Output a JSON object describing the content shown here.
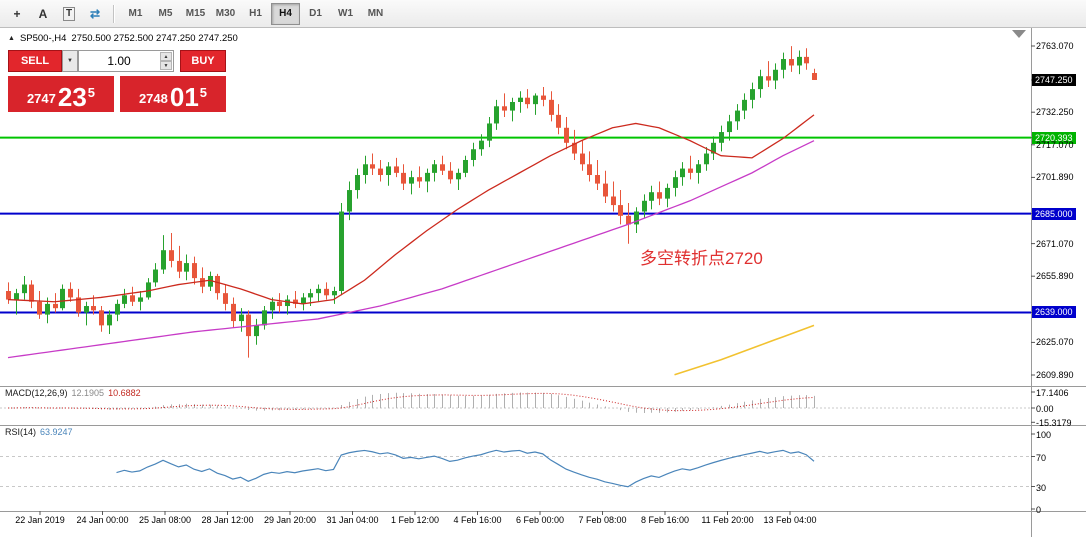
{
  "toolbar": {
    "icons": [
      {
        "name": "crosshair-icon",
        "glyph": "+"
      },
      {
        "name": "arrow-tool-icon",
        "glyph": "A"
      },
      {
        "name": "text-tool-icon",
        "glyph": "T"
      },
      {
        "name": "cycle-symbols-icon",
        "glyph": "⇄"
      }
    ],
    "timeframes": [
      {
        "label": "M1",
        "active": false
      },
      {
        "label": "M5",
        "active": false
      },
      {
        "label": "M15",
        "active": false
      },
      {
        "label": "M30",
        "active": false
      },
      {
        "label": "H1",
        "active": false
      },
      {
        "label": "H4",
        "active": true
      },
      {
        "label": "D1",
        "active": false
      },
      {
        "label": "W1",
        "active": false
      },
      {
        "label": "MN",
        "active": false
      }
    ]
  },
  "chart_header": {
    "collapse_glyph": "▲",
    "symbol": "SP500-,H4",
    "ohlc": "2750.500 2752.500 2747.250 2747.250"
  },
  "trade_panel": {
    "sell_label": "SELL",
    "buy_label": "BUY",
    "lot_value": "1.00",
    "dropdown_glyph": "▼",
    "spin_up_glyph": "▲",
    "spin_down_glyph": "▼",
    "bid": {
      "main": "2747",
      "pips": "23",
      "frac": "5"
    },
    "ask": {
      "main": "2748",
      "pips": "01",
      "frac": "5"
    }
  },
  "annotation": {
    "text": "多空转折点2720"
  },
  "price_axis": {
    "labels": [
      {
        "text": "2763.070",
        "price": 2763.07,
        "type": "normal"
      },
      {
        "text": "2747.250",
        "price": 2747.25,
        "type": "current"
      },
      {
        "text": "2732.250",
        "price": 2732.25,
        "type": "normal"
      },
      {
        "text": "2720.393",
        "price": 2720.393,
        "type": "line-green"
      },
      {
        "text": "2717.070",
        "price": 2717.07,
        "type": "normal"
      },
      {
        "text": "2701.890",
        "price": 2701.89,
        "type": "normal"
      },
      {
        "text": "2685.000",
        "price": 2685.0,
        "type": "line-blue"
      },
      {
        "text": "2671.070",
        "price": 2671.07,
        "type": "normal"
      },
      {
        "text": "2655.890",
        "price": 2655.89,
        "type": "normal"
      },
      {
        "text": "2639.000",
        "price": 2639.0,
        "type": "line-blue"
      },
      {
        "text": "2625.070",
        "price": 2625.07,
        "type": "normal"
      },
      {
        "text": "2609.890",
        "price": 2609.89,
        "type": "normal"
      }
    ]
  },
  "time_axis": {
    "labels": [
      "22 Jan 2019",
      "24 Jan 00:00",
      "25 Jan 08:00",
      "28 Jan 12:00",
      "29 Jan 20:00",
      "31 Jan 04:00",
      "1 Feb 12:00",
      "4 Feb 16:00",
      "6 Feb 00:00",
      "7 Feb 08:00",
      "8 Feb 16:00",
      "11 Feb 20:00",
      "13 Feb 04:00"
    ]
  },
  "indicators": {
    "macd": {
      "name": "MACD(12,26,9)",
      "value_main": "12.1905",
      "value_signal": "10.6882",
      "axis": [
        {
          "text": "17.1406",
          "value": 17.1406
        },
        {
          "text": "0.00",
          "value": 0
        },
        {
          "text": "-15.3179",
          "value": -15.3179
        }
      ],
      "params": {
        "fast": 12,
        "slow": 26,
        "signal": 9
      }
    },
    "rsi": {
      "name": "RSI(14)",
      "value": "63.9247",
      "axis": [
        {
          "text": "100",
          "value": 100
        },
        {
          "text": "70",
          "value": 70
        },
        {
          "text": "30",
          "value": 30
        },
        {
          "text": "0",
          "value": 0
        }
      ],
      "levels": [
        70,
        30
      ],
      "period": 14
    }
  },
  "chart_data": {
    "type": "candlestick",
    "symbol": "SP500-",
    "timeframe": "H4",
    "visible_price_top": 2771.5,
    "visible_price_bottom": 2604.5,
    "current_price": {
      "value": 2747.25,
      "label": "2747.250"
    },
    "hlines": [
      {
        "price": 2720.393,
        "color": "#00c400",
        "label": "2720.393"
      },
      {
        "price": 2685.0,
        "color": "#0000cc",
        "label": "2685.000"
      },
      {
        "price": 2639.0,
        "color": "#0000cc",
        "label": "2639.000"
      }
    ],
    "candles": [
      [
        2649,
        2653,
        2643,
        2645
      ],
      [
        2645,
        2650,
        2638,
        2648
      ],
      [
        2648,
        2656,
        2645,
        2652
      ],
      [
        2652,
        2654,
        2641,
        2644
      ],
      [
        2644,
        2649,
        2636,
        2638
      ],
      [
        2638,
        2646,
        2634,
        2643
      ],
      [
        2643,
        2648,
        2639,
        2641
      ],
      [
        2641,
        2652,
        2640,
        2650
      ],
      [
        2650,
        2653,
        2644,
        2646
      ],
      [
        2646,
        2650,
        2637,
        2639
      ],
      [
        2639,
        2644,
        2633,
        2642
      ],
      [
        2642,
        2647,
        2638,
        2640
      ],
      [
        2640,
        2642,
        2630,
        2633
      ],
      [
        2633,
        2640,
        2629,
        2638
      ],
      [
        2638,
        2645,
        2635,
        2643
      ],
      [
        2643,
        2650,
        2641,
        2647
      ],
      [
        2647,
        2651,
        2642,
        2644
      ],
      [
        2644,
        2649,
        2640,
        2646
      ],
      [
        2646,
        2655,
        2645,
        2653
      ],
      [
        2653,
        2662,
        2651,
        2659
      ],
      [
        2659,
        2675,
        2657,
        2668
      ],
      [
        2668,
        2676,
        2660,
        2663
      ],
      [
        2663,
        2670,
        2655,
        2658
      ],
      [
        2658,
        2666,
        2654,
        2662
      ],
      [
        2662,
        2665,
        2652,
        2655
      ],
      [
        2655,
        2660,
        2648,
        2651
      ],
      [
        2651,
        2658,
        2649,
        2656
      ],
      [
        2656,
        2657,
        2645,
        2648
      ],
      [
        2648,
        2652,
        2640,
        2643
      ],
      [
        2643,
        2646,
        2632,
        2635
      ],
      [
        2635,
        2641,
        2630,
        2638
      ],
      [
        2638,
        2640,
        2618,
        2628
      ],
      [
        2628,
        2636,
        2624,
        2633
      ],
      [
        2633,
        2642,
        2631,
        2640
      ],
      [
        2640,
        2646,
        2636,
        2644
      ],
      [
        2644,
        2648,
        2639,
        2642
      ],
      [
        2642,
        2647,
        2638,
        2645
      ],
      [
        2645,
        2649,
        2641,
        2643
      ],
      [
        2643,
        2648,
        2640,
        2646
      ],
      [
        2646,
        2650,
        2642,
        2648
      ],
      [
        2648,
        2652,
        2644,
        2650
      ],
      [
        2650,
        2653,
        2645,
        2647
      ],
      [
        2647,
        2651,
        2643,
        2649
      ],
      [
        2649,
        2690,
        2647,
        2686
      ],
      [
        2686,
        2700,
        2682,
        2696
      ],
      [
        2696,
        2706,
        2692,
        2703
      ],
      [
        2703,
        2712,
        2699,
        2708
      ],
      [
        2708,
        2713,
        2703,
        2706
      ],
      [
        2706,
        2710,
        2700,
        2703
      ],
      [
        2703,
        2709,
        2698,
        2707
      ],
      [
        2707,
        2711,
        2702,
        2704
      ],
      [
        2704,
        2708,
        2696,
        2699
      ],
      [
        2699,
        2705,
        2694,
        2702
      ],
      [
        2702,
        2707,
        2697,
        2700
      ],
      [
        2700,
        2706,
        2695,
        2704
      ],
      [
        2704,
        2710,
        2700,
        2708
      ],
      [
        2708,
        2712,
        2703,
        2705
      ],
      [
        2705,
        2709,
        2699,
        2701
      ],
      [
        2701,
        2706,
        2696,
        2704
      ],
      [
        2704,
        2712,
        2702,
        2710
      ],
      [
        2710,
        2718,
        2707,
        2715
      ],
      [
        2715,
        2722,
        2712,
        2719
      ],
      [
        2719,
        2730,
        2716,
        2727
      ],
      [
        2727,
        2738,
        2724,
        2735
      ],
      [
        2735,
        2741,
        2730,
        2733
      ],
      [
        2733,
        2739,
        2728,
        2737
      ],
      [
        2737,
        2742,
        2732,
        2739
      ],
      [
        2739,
        2743,
        2734,
        2736
      ],
      [
        2736,
        2741,
        2731,
        2740
      ],
      [
        2740,
        2744,
        2735,
        2738
      ],
      [
        2738,
        2742,
        2728,
        2731
      ],
      [
        2731,
        2736,
        2722,
        2725
      ],
      [
        2725,
        2730,
        2715,
        2718
      ],
      [
        2718,
        2724,
        2710,
        2713
      ],
      [
        2713,
        2719,
        2705,
        2708
      ],
      [
        2708,
        2714,
        2700,
        2703
      ],
      [
        2703,
        2710,
        2696,
        2699
      ],
      [
        2699,
        2705,
        2690,
        2693
      ],
      [
        2693,
        2700,
        2686,
        2689
      ],
      [
        2689,
        2696,
        2680,
        2684
      ],
      [
        2684,
        2690,
        2671,
        2680
      ],
      [
        2680,
        2688,
        2676,
        2686
      ],
      [
        2686,
        2694,
        2683,
        2691
      ],
      [
        2691,
        2698,
        2687,
        2695
      ],
      [
        2695,
        2700,
        2689,
        2692
      ],
      [
        2692,
        2699,
        2688,
        2697
      ],
      [
        2697,
        2705,
        2693,
        2702
      ],
      [
        2702,
        2709,
        2698,
        2706
      ],
      [
        2706,
        2712,
        2701,
        2704
      ],
      [
        2704,
        2710,
        2699,
        2708
      ],
      [
        2708,
        2716,
        2705,
        2713
      ],
      [
        2713,
        2721,
        2710,
        2718
      ],
      [
        2718,
        2726,
        2714,
        2723
      ],
      [
        2723,
        2731,
        2719,
        2728
      ],
      [
        2728,
        2736,
        2724,
        2733
      ],
      [
        2733,
        2741,
        2729,
        2738
      ],
      [
        2738,
        2746,
        2734,
        2743
      ],
      [
        2743,
        2752,
        2739,
        2749
      ],
      [
        2749,
        2756,
        2744,
        2747
      ],
      [
        2747,
        2755,
        2743,
        2752
      ],
      [
        2752,
        2760,
        2748,
        2757
      ],
      [
        2757,
        2763,
        2751,
        2754
      ],
      [
        2754,
        2761,
        2750,
        2758
      ],
      [
        2758,
        2762,
        2752,
        2755
      ],
      [
        2750.5,
        2752.5,
        2747.25,
        2747.25
      ]
    ],
    "ma_red": [
      [
        0,
        2645
      ],
      [
        6,
        2644
      ],
      [
        12,
        2646
      ],
      [
        18,
        2649
      ],
      [
        22,
        2652
      ],
      [
        26,
        2654
      ],
      [
        30,
        2650
      ],
      [
        34,
        2645
      ],
      [
        38,
        2643
      ],
      [
        42,
        2645
      ],
      [
        46,
        2654
      ],
      [
        50,
        2666
      ],
      [
        54,
        2677
      ],
      [
        58,
        2687
      ],
      [
        62,
        2696
      ],
      [
        66,
        2704
      ],
      [
        70,
        2712
      ],
      [
        74,
        2719
      ],
      [
        78,
        2725
      ],
      [
        81,
        2727
      ],
      [
        84,
        2725
      ],
      [
        88,
        2719
      ],
      [
        92,
        2712
      ],
      [
        96,
        2711
      ],
      [
        100,
        2720
      ],
      [
        104,
        2731
      ]
    ],
    "ma_magenta": [
      [
        0,
        2618
      ],
      [
        8,
        2622
      ],
      [
        16,
        2626
      ],
      [
        24,
        2630
      ],
      [
        32,
        2633
      ],
      [
        40,
        2636
      ],
      [
        48,
        2642
      ],
      [
        56,
        2650
      ],
      [
        64,
        2660
      ],
      [
        72,
        2670
      ],
      [
        80,
        2680
      ],
      [
        88,
        2691
      ],
      [
        96,
        2704
      ],
      [
        100,
        2712
      ],
      [
        104,
        2719
      ]
    ],
    "ma_yellow": [
      [
        86,
        2610
      ],
      [
        92,
        2617
      ],
      [
        98,
        2625
      ],
      [
        104,
        2633
      ]
    ]
  },
  "colors": {
    "bull": "#27a22e",
    "bear": "#e8563b",
    "ma_red": "#cc2a1e",
    "ma_magenta": "#c73bc7",
    "ma_yellow": "#f2c230",
    "hline_green": "#00c400",
    "hline_blue": "#0000cc",
    "macd_hist": "#b0b0b0",
    "macd_signal": "#cc2222",
    "rsi_line": "#4a85ba",
    "annotation": "#e03030",
    "trade_red": "#d8242b"
  }
}
